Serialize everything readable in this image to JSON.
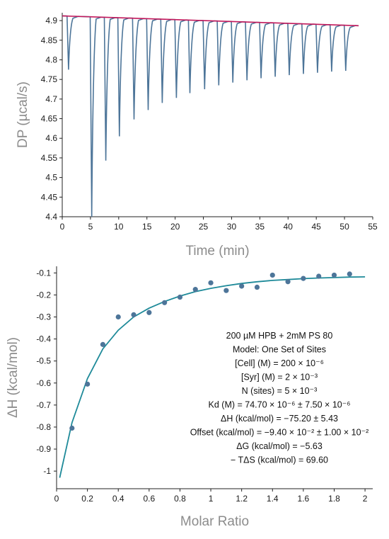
{
  "chart_data": [
    {
      "type": "line",
      "xlabel": "Time (min)",
      "ylabel": "DP (µcal/s)",
      "xlim": [
        0,
        55
      ],
      "ylim": [
        4.4,
        4.92
      ],
      "xticks": [
        "0",
        "5",
        "10",
        "15",
        "20",
        "25",
        "30",
        "35",
        "40",
        "45",
        "50",
        "55"
      ],
      "yticks": [
        "4.4",
        "4.45",
        "4.5",
        "4.55",
        "4.6",
        "4.65",
        "4.7",
        "4.75",
        "4.8",
        "4.85",
        "4.9"
      ],
      "baseline": {
        "x": [
          0,
          52.5
        ],
        "y": [
          4.912,
          4.887
        ]
      },
      "injections": {
        "time": [
          1.0,
          5.1,
          7.6,
          10.0,
          12.6,
          15.1,
          17.6,
          20.1,
          22.5,
          25.1,
          27.6,
          30.1,
          32.6,
          35.1,
          37.6,
          40.1,
          42.6,
          45.1,
          47.6,
          50.1
        ],
        "peak_dp": [
          4.775,
          4.4,
          4.543,
          4.605,
          4.648,
          4.672,
          4.69,
          4.703,
          4.715,
          4.725,
          4.735,
          4.742,
          4.748,
          4.753,
          4.757,
          4.761,
          4.764,
          4.767,
          4.77,
          4.772
        ]
      },
      "colors": {
        "trace": "#4d7599",
        "baseline": "#c2185b"
      },
      "grid": false
    },
    {
      "type": "scatter",
      "xlabel": "Molar Ratio",
      "ylabel": "ΔH (kcal/mol)",
      "xlim": [
        0,
        2.05
      ],
      "ylim": [
        -1.08,
        -0.07
      ],
      "xticks": [
        "0",
        "0.2",
        "0.4",
        "0.6",
        "0.8",
        "1",
        "1.2",
        "1.4",
        "1.6",
        "1.8",
        "2"
      ],
      "yticks": [
        "-1",
        "-0.9",
        "-0.8",
        "-0.7",
        "-0.6",
        "-0.5",
        "-0.4",
        "-0.3",
        "-0.2",
        "-0.1"
      ],
      "points": {
        "x": [
          0.1,
          0.2,
          0.3,
          0.4,
          0.5,
          0.6,
          0.7,
          0.8,
          0.9,
          1.0,
          1.1,
          1.2,
          1.3,
          1.4,
          1.5,
          1.6,
          1.7,
          1.8,
          1.9
        ],
        "y": [
          -0.805,
          -0.605,
          -0.425,
          -0.3,
          -0.29,
          -0.28,
          -0.235,
          -0.21,
          -0.175,
          -0.145,
          -0.18,
          -0.16,
          -0.165,
          -0.11,
          -0.14,
          -0.125,
          -0.115,
          -0.11,
          -0.105
        ]
      },
      "fit": {
        "x": [
          0.02,
          0.1,
          0.2,
          0.3,
          0.4,
          0.5,
          0.6,
          0.7,
          0.8,
          0.9,
          1.0,
          1.1,
          1.2,
          1.3,
          1.4,
          1.5,
          1.6,
          1.7,
          1.8,
          1.9,
          2.0
        ],
        "y": [
          -1.03,
          -0.78,
          -0.58,
          -0.445,
          -0.36,
          -0.3,
          -0.26,
          -0.23,
          -0.205,
          -0.185,
          -0.17,
          -0.158,
          -0.148,
          -0.14,
          -0.134,
          -0.13,
          -0.126,
          -0.123,
          -0.121,
          -0.119,
          -0.118
        ]
      },
      "annotations": [
        "200 µM HPB + 2mM PS 80",
        "Model: One Set of Sites",
        "[Cell] (M) = 200 × 10⁻⁶",
        "[Syr] (M) = 2 × 10⁻³",
        "N (sites) = 5 × 10⁻³",
        "Kd  (M) = 74.70 × 10⁻⁶ ± 7.50 × 10⁻⁶",
        "ΔH (kcal/mol) = −75.20 ± 5.43",
        "Offset (kcal/mol) = −9.40 × 10⁻² ± 1.00 × 10⁻²",
        "ΔG (kcal/mol) = −5.63",
        "− TΔS (kcal/mol) = 69.60"
      ],
      "colors": {
        "points": "#4d7599",
        "fit": "#1e8a99"
      },
      "grid": false
    }
  ]
}
